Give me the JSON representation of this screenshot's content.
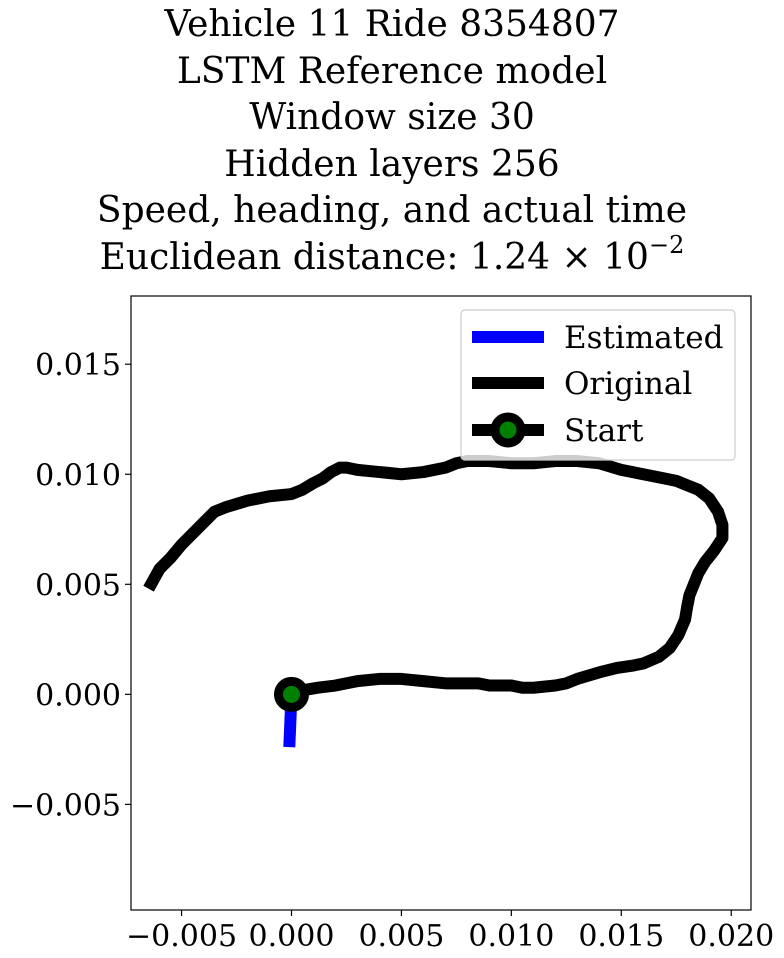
{
  "chart_data": {
    "type": "line",
    "title_lines": [
      "Vehicle 11 Ride 8354807",
      "LSTM Reference model",
      "Window size 30",
      "Hidden layers 256",
      "Speed, heading, and actual time"
    ],
    "title_metric": {
      "prefix": "Euclidean distance: 1.24 × 10",
      "exponent": "−2"
    },
    "xlabel": "",
    "ylabel": "",
    "xlim": [
      -0.0073,
      0.0209
    ],
    "ylim": [
      -0.0098,
      0.0181
    ],
    "x_ticks": [
      -0.005,
      0.0,
      0.005,
      0.01,
      0.015,
      0.02
    ],
    "x_tick_labels": [
      "−0.005",
      "0.000",
      "0.005",
      "0.010",
      "0.015",
      "0.020"
    ],
    "y_ticks": [
      -0.005,
      0.0,
      0.005,
      0.01,
      0.015
    ],
    "y_tick_labels": [
      "−0.005",
      "0.000",
      "0.005",
      "0.010",
      "0.015"
    ],
    "grid": false,
    "legend_position": "top-right",
    "series": [
      {
        "name": "Estimated",
        "color": "#0000ff",
        "x": [
          0.0,
          -5e-05,
          -0.0001
        ],
        "y": [
          0.0,
          -0.0012,
          -0.0024
        ]
      },
      {
        "name": "Original",
        "color": "#000000",
        "x": [
          0.0,
          0.0006,
          0.0012,
          0.002,
          0.003,
          0.004,
          0.005,
          0.006,
          0.007,
          0.0075,
          0.008,
          0.0085,
          0.009,
          0.01,
          0.0105,
          0.011,
          0.012,
          0.0125,
          0.013,
          0.014,
          0.0148,
          0.0155,
          0.016,
          0.0167,
          0.0172,
          0.0176,
          0.0179,
          0.018,
          0.0181,
          0.0183,
          0.0185,
          0.0188,
          0.0192,
          0.0196,
          0.0196,
          0.0194,
          0.019,
          0.0185,
          0.018,
          0.0175,
          0.017,
          0.016,
          0.015,
          0.014,
          0.013,
          0.012,
          0.011,
          0.01,
          0.009,
          0.008,
          0.0075,
          0.007,
          0.006,
          0.005,
          0.004,
          0.003,
          0.0025,
          0.0022,
          0.0018,
          0.0014,
          0.001,
          0.0005,
          0.0,
          -0.001,
          -0.002,
          -0.003,
          -0.0035,
          -0.004,
          -0.005,
          -0.0055,
          -0.006,
          -0.0065
        ],
        "y": [
          0.0,
          0.0002,
          0.0003,
          0.0004,
          0.0006,
          0.0007,
          0.0007,
          0.0006,
          0.0005,
          0.0005,
          0.0005,
          0.0005,
          0.0004,
          0.0004,
          0.0003,
          0.0003,
          0.0004,
          0.0005,
          0.0007,
          0.001,
          0.0012,
          0.0013,
          0.0014,
          0.0017,
          0.0021,
          0.0027,
          0.0034,
          0.004,
          0.0045,
          0.005,
          0.0055,
          0.006,
          0.0065,
          0.0071,
          0.0077,
          0.0083,
          0.0089,
          0.0093,
          0.0095,
          0.0097,
          0.0098,
          0.01,
          0.0102,
          0.0105,
          0.0106,
          0.0106,
          0.0105,
          0.0105,
          0.0106,
          0.0106,
          0.0105,
          0.0103,
          0.0101,
          0.01,
          0.0101,
          0.0102,
          0.0103,
          0.0103,
          0.0101,
          0.0098,
          0.0096,
          0.0093,
          0.0091,
          0.009,
          0.0088,
          0.0085,
          0.0083,
          0.0078,
          0.0068,
          0.0062,
          0.0057,
          0.0048
        ]
      }
    ],
    "start_point": {
      "name": "Start",
      "x": 0.0,
      "y": 0.0,
      "marker_fill": "#008000",
      "marker_edge": "#000000"
    }
  }
}
